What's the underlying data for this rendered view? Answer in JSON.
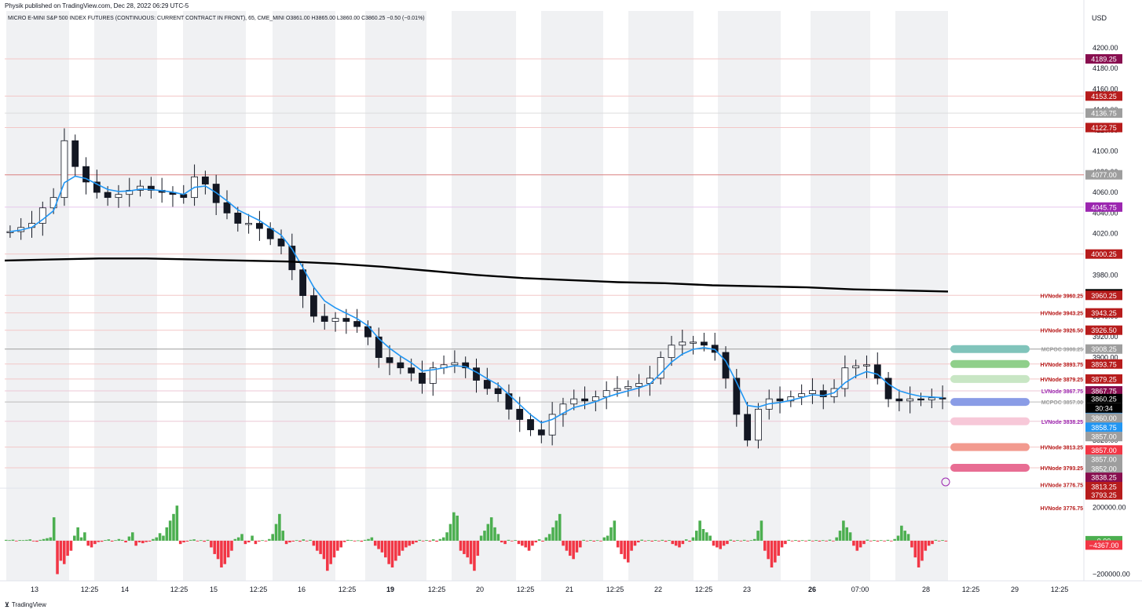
{
  "header": {
    "published_by": "Physik published on TradingView.com, Dec 28, 2022 06:29 UTC-5"
  },
  "symbol": {
    "name": "MICRO E-MINI S&P 500 INDEX FUTURES (CONTINUOUS: CURRENT CONTRACT IN FRONT), 65, CME_MINI",
    "ohlc": "O3861.00  H3865.00  L3860.00  C3860.25  −0.50 (−0.01%)"
  },
  "footer": {
    "brand": "TradingView"
  },
  "colors": {
    "up": "#4caf50",
    "down": "#f23645",
    "vwap": "#2196f3",
    "ma": "#000000",
    "session_shade": "#f0f1f3",
    "profile": "#555555"
  },
  "chart_data": [
    {
      "type": "candlestick",
      "title": "",
      "currency_label": "USD",
      "y_ticks": [
        4200,
        4180,
        4160,
        4140,
        4120,
        4100,
        4080,
        4060,
        4040,
        4020,
        4000,
        3980,
        3960,
        3940,
        3920,
        3900,
        3880,
        3860,
        3840,
        3820,
        3800,
        3780
      ],
      "y_tick_labels": [
        "4200.00",
        "4180.00",
        "4160.00",
        "4140.00",
        "4120.00",
        "4100.00",
        "4080.00",
        "4060.00",
        "4040.00",
        "4020.00",
        "4000.00",
        "3980.00",
        "3960.00",
        "3940.00",
        "3920.00",
        "3900.00",
        "3880.00",
        "3860.00",
        "3840.00",
        "3820.00",
        "3800.00",
        "3780.00"
      ],
      "ylim": [
        3775,
        4225
      ],
      "x_tick_labels": [
        "13",
        "12:25",
        "14",
        "12:25",
        "15",
        "12:25",
        "16",
        "12:25",
        "19",
        "12:25",
        "20",
        "12:25",
        "21",
        "12:25",
        "22",
        "12:25",
        "23",
        "26",
        "07:00",
        "28",
        "12:25",
        "29",
        "12:25"
      ],
      "x_tick_bold": [
        "19",
        "26"
      ],
      "last_price": "3860.25",
      "countdown": "30:34",
      "close_series": [
        4022,
        4026,
        4030,
        4045,
        4055,
        4110,
        4085,
        4070,
        4060,
        4055,
        4058,
        4062,
        4066,
        4062,
        4060,
        4058,
        4055,
        4075,
        4068,
        4050,
        4040,
        4030,
        4030,
        4025,
        4015,
        4008,
        3985,
        3960,
        3940,
        3935,
        3938,
        3935,
        3930,
        3920,
        3900,
        3895,
        3890,
        3885,
        3875,
        3890,
        3893,
        3895,
        3890,
        3878,
        3870,
        3865,
        3850,
        3840,
        3830,
        3825,
        3845,
        3855,
        3860,
        3858,
        3862,
        3868,
        3870,
        3872,
        3875,
        3880,
        3900,
        3912,
        3915,
        3915,
        3912,
        3905,
        3880,
        3845,
        3820,
        3850,
        3860,
        3858,
        3862,
        3865,
        3868,
        3862,
        3870,
        3890,
        3892,
        3893,
        3880,
        3860,
        3858,
        3860,
        3859,
        3861,
        3860
      ],
      "ma_series": [
        3994,
        3995,
        3996,
        3996,
        3995,
        3994,
        3993,
        3991,
        3988,
        3984,
        3980,
        3977,
        3975,
        3973,
        3972,
        3970,
        3969,
        3968,
        3966,
        3965,
        3964
      ],
      "price_badges": [
        {
          "label": "4189.25",
          "value": 4189.25,
          "color": "#880e4f"
        },
        {
          "label": "4153.25",
          "value": 4153.25,
          "color": "#b71c1c"
        },
        {
          "label": "4136.75",
          "value": 4136.75,
          "color": "#9e9e9e"
        },
        {
          "label": "4122.75",
          "value": 4122.75,
          "color": "#b71c1c"
        },
        {
          "label": "4077.00",
          "value": 4077.0,
          "color": "#9e9e9e"
        },
        {
          "label": "4045.75",
          "value": 4045.75,
          "color": "#9c27b0"
        },
        {
          "label": "4000.25",
          "value": 4000.25,
          "color": "#b71c1c"
        },
        {
          "label": "3961.75",
          "value": 3961.75,
          "color": "#000000"
        },
        {
          "label": "3960.25",
          "value": 3960.25,
          "color": "#b71c1c"
        },
        {
          "label": "3943.25",
          "value": 3943.25,
          "color": "#b71c1c"
        },
        {
          "label": "3926.50",
          "value": 3926.5,
          "color": "#b71c1c"
        },
        {
          "label": "3908.25",
          "value": 3908.25,
          "color": "#9e9e9e"
        },
        {
          "label": "3893.75",
          "value": 3893.75,
          "color": "#b71c1c"
        },
        {
          "label": "3879.25",
          "value": 3879.25,
          "color": "#b71c1c"
        },
        {
          "label": "3867.75",
          "value": 3867.75,
          "color": "#880e4f"
        },
        {
          "label": "3860.25",
          "value": 3860.25,
          "color": "#000000"
        },
        {
          "label": "3860.00",
          "value": 3850.5,
          "color": "#2196f3"
        },
        {
          "label": "3860.00",
          "value": 3841.5,
          "color": "#9e9e9e"
        },
        {
          "label": "3858.75",
          "value": 3832.5,
          "color": "#2196f3"
        },
        {
          "label": "3857.00",
          "value": 3823.5,
          "color": "#9e9e9e"
        },
        {
          "label": "3857.00",
          "value": 3810.5,
          "color": "#f23645"
        },
        {
          "label": "3857.00",
          "value": 3801.5,
          "color": "#9e9e9e"
        },
        {
          "label": "3852.00",
          "value": 3792.5,
          "color": "#9e9e9e"
        },
        {
          "label": "3838.25",
          "value": 3784.0,
          "color": "#880e4f"
        },
        {
          "label": "3813.25",
          "value": 3775.0,
          "color": "#b71c1c"
        },
        {
          "label": "3793.25",
          "value": 3767.0,
          "color": "#b71c1c"
        }
      ],
      "level_lines": [
        {
          "value": 4189.25,
          "color": "#f3c7c7"
        },
        {
          "value": 4153.25,
          "color": "#f3c7c7"
        },
        {
          "value": 4136.75,
          "color": "#dddddd"
        },
        {
          "value": 4122.75,
          "color": "#f3c7c7"
        },
        {
          "value": 4077.0,
          "color": "#d98080"
        },
        {
          "value": 4045.75,
          "color": "#e6c7ec"
        },
        {
          "value": 4000.25,
          "color": "#f3c7c7"
        },
        {
          "value": 3960.25,
          "color": "#f3c7c7"
        },
        {
          "value": 3943.25,
          "color": "#f3c7c7"
        },
        {
          "value": 3926.5,
          "color": "#f3c7c7"
        },
        {
          "value": 3908.25,
          "color": "#9e9e9e"
        },
        {
          "value": 3893.75,
          "color": "#f3c7c7"
        },
        {
          "value": 3879.25,
          "color": "#f3c7c7"
        },
        {
          "value": 3867.75,
          "color": "#ecc7d6"
        },
        {
          "value": 3857.0,
          "color": "#bbbbbb"
        },
        {
          "value": 3838.25,
          "color": "#ecc7d6"
        },
        {
          "value": 3813.25,
          "color": "#f3c7c7"
        },
        {
          "value": 3793.25,
          "color": "#f3c7c7"
        }
      ],
      "level_annotations": [
        {
          "text": "HVNode 3960.25",
          "value": 3960.25,
          "color": "#b71c1c"
        },
        {
          "text": "HVNode 3943.25",
          "value": 3943.25,
          "color": "#b71c1c"
        },
        {
          "text": "HVNode 3926.50",
          "value": 3926.5,
          "color": "#b71c1c"
        },
        {
          "text": "MCPOC 3908.25",
          "value": 3908.25,
          "color": "#9e9e9e"
        },
        {
          "text": "HVNode 3893.75",
          "value": 3893.75,
          "color": "#b71c1c"
        },
        {
          "text": "HVNode 3879.25",
          "value": 3879.25,
          "color": "#b71c1c"
        },
        {
          "text": "LVNode 3867.75",
          "value": 3867.75,
          "color": "#9c27b0"
        },
        {
          "text": "MCPOC 3857.00",
          "value": 3857.0,
          "color": "#9e9e9e"
        },
        {
          "text": "LVNode 3838.25",
          "value": 3838.25,
          "color": "#9c27b0"
        },
        {
          "text": "HVNode 3813.25",
          "value": 3813.25,
          "color": "#b71c1c"
        },
        {
          "text": "HVNode 3793.25",
          "value": 3793.25,
          "color": "#b71c1c"
        },
        {
          "text": "HVNode 3776.75",
          "value": 3776.75,
          "color": "#b71c1c"
        },
        {
          "text": "HVNode 3776.75",
          "value": 3754.5,
          "color": "#b71c1c"
        }
      ],
      "level_pills": [
        {
          "value": 3908.25,
          "color": "#80c4bb"
        },
        {
          "value": 3893.75,
          "color": "#8fcf8a"
        },
        {
          "value": 3879.25,
          "color": "#c8e6c4"
        },
        {
          "value": 3857.0,
          "color": "#8a9ce6"
        },
        {
          "value": 3838.25,
          "color": "#f7c8d8"
        },
        {
          "value": 3813.25,
          "color": "#f29a8f"
        },
        {
          "value": 3793.25,
          "color": "#e86d93"
        }
      ]
    },
    {
      "type": "bar",
      "title": "",
      "y_ticks": [
        200000,
        0,
        -200000
      ],
      "y_tick_labels": [
        "200000.00",
        "0.00",
        "−200000.00"
      ],
      "ylim": [
        -240000,
        300000
      ],
      "badges": [
        {
          "label": "0.00",
          "value": 0,
          "color": "#4caf50"
        },
        {
          "label": "−4367.00",
          "value": -26000,
          "color": "#f23645"
        }
      ],
      "values": [
        5000,
        3000,
        6000,
        -2000,
        4000,
        3000,
        5000,
        8000,
        -4000,
        -6000,
        5000,
        10000,
        15000,
        20000,
        140000,
        -200000,
        -120000,
        -140000,
        -90000,
        -60000,
        30000,
        80000,
        20000,
        50000,
        -30000,
        -40000,
        -20000,
        -8000,
        -6000,
        4000,
        8000,
        -5000,
        3000,
        10000,
        5000,
        -10000,
        25000,
        50000,
        -30000,
        -10000,
        -15000,
        -8000,
        -5000,
        10000,
        20000,
        45000,
        30000,
        80000,
        120000,
        160000,
        210000,
        -20000,
        -10000,
        -5000,
        5000,
        8000,
        -4000,
        3000,
        -6000,
        5000,
        -40000,
        -80000,
        -110000,
        -160000,
        -140000,
        -100000,
        -60000,
        10000,
        20000,
        40000,
        -20000,
        -10000,
        30000,
        -20000,
        -5000,
        3000,
        -4000,
        10000,
        40000,
        100000,
        160000,
        60000,
        -20000,
        -10000,
        -5000,
        3000,
        -6000,
        8000,
        -3000,
        5000,
        -30000,
        -60000,
        -80000,
        -110000,
        -180000,
        -140000,
        -100000,
        -60000,
        -40000,
        -8000,
        5000,
        3000,
        -4000,
        2000,
        -6000,
        5000,
        10000,
        20000,
        -30000,
        -50000,
        -70000,
        -100000,
        -140000,
        -160000,
        -120000,
        -90000,
        -60000,
        -40000,
        -30000,
        -20000,
        -10000,
        5000,
        -3000,
        4000,
        -5000,
        8000,
        -6000,
        10000,
        20000,
        50000,
        100000,
        170000,
        150000,
        -60000,
        -80000,
        -100000,
        -140000,
        -180000,
        -90000,
        30000,
        60000,
        100000,
        140000,
        80000,
        40000,
        -10000,
        -20000,
        5000,
        -3000,
        4000,
        -20000,
        -30000,
        -40000,
        -60000,
        -30000,
        -10000,
        8000,
        -5000,
        20000,
        40000,
        80000,
        120000,
        160000,
        -30000,
        -60000,
        -90000,
        -110000,
        -70000,
        -40000,
        5000,
        -3000,
        4000,
        -5000,
        3000,
        -4000,
        20000,
        30000,
        80000,
        120000,
        -40000,
        -80000,
        -110000,
        -130000,
        -60000,
        -30000,
        -10000,
        6000,
        -4000,
        3000,
        -5000,
        4000,
        -3000,
        5000,
        -6000,
        4000,
        -20000,
        -30000,
        -40000,
        -20000,
        8000,
        -6000,
        20000,
        60000,
        120000,
        70000,
        50000,
        30000,
        -30000,
        -40000,
        -50000,
        -30000,
        -20000,
        6000,
        -5000,
        4000,
        -3000,
        5000,
        -4000,
        3000,
        10000,
        60000,
        120000,
        -60000,
        -110000,
        -160000,
        -130000,
        -90000,
        -40000,
        -20000,
        5000,
        -3000,
        4000,
        -5000,
        3000,
        -4000,
        5000,
        -3000,
        4000,
        -5000,
        3000,
        -4000,
        6000,
        -3000,
        20000,
        60000,
        120000,
        80000,
        50000,
        -30000,
        -60000,
        -40000,
        -20000,
        6000,
        -3000,
        4000,
        -5000,
        3000,
        -4000,
        5000,
        -3000,
        10000,
        30000,
        90000,
        60000,
        40000,
        -40000,
        -100000,
        -160000,
        -120000,
        -60000,
        -30000,
        -20000,
        5000,
        -3000,
        4000,
        -4367
      ]
    }
  ]
}
